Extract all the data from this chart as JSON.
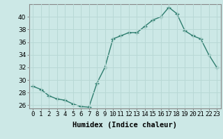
{
  "x": [
    0,
    1,
    2,
    3,
    4,
    5,
    6,
    7,
    8,
    9,
    10,
    11,
    12,
    13,
    14,
    15,
    16,
    17,
    18,
    19,
    20,
    21,
    22,
    23
  ],
  "y": [
    29,
    28.5,
    27.5,
    27,
    26.8,
    26.2,
    25.8,
    25.7,
    29.5,
    32,
    36.5,
    37,
    37.5,
    37.5,
    38.5,
    39.5,
    40,
    41.5,
    40.5,
    37.8,
    37,
    36.5,
    34,
    32
  ],
  "line_color": "#2e7d6e",
  "marker": "+",
  "marker_size": 4,
  "bg_color": "#cce8e6",
  "grid_color": "#b8d8d5",
  "xlabel": "Humidex (Indice chaleur)",
  "ylim": [
    25.5,
    42
  ],
  "xlim": [
    -0.5,
    23.5
  ],
  "yticks": [
    26,
    28,
    30,
    32,
    34,
    36,
    38,
    40
  ],
  "xtick_labels": [
    "0",
    "1",
    "2",
    "3",
    "4",
    "5",
    "6",
    "7",
    "8",
    "9",
    "10",
    "11",
    "12",
    "13",
    "14",
    "15",
    "16",
    "17",
    "18",
    "19",
    "20",
    "21",
    "22",
    "23"
  ],
  "xlabel_fontsize": 7.5,
  "tick_fontsize": 6.5,
  "spine_color": "#888888",
  "linewidth": 1.0,
  "marker_linewidth": 1.0
}
